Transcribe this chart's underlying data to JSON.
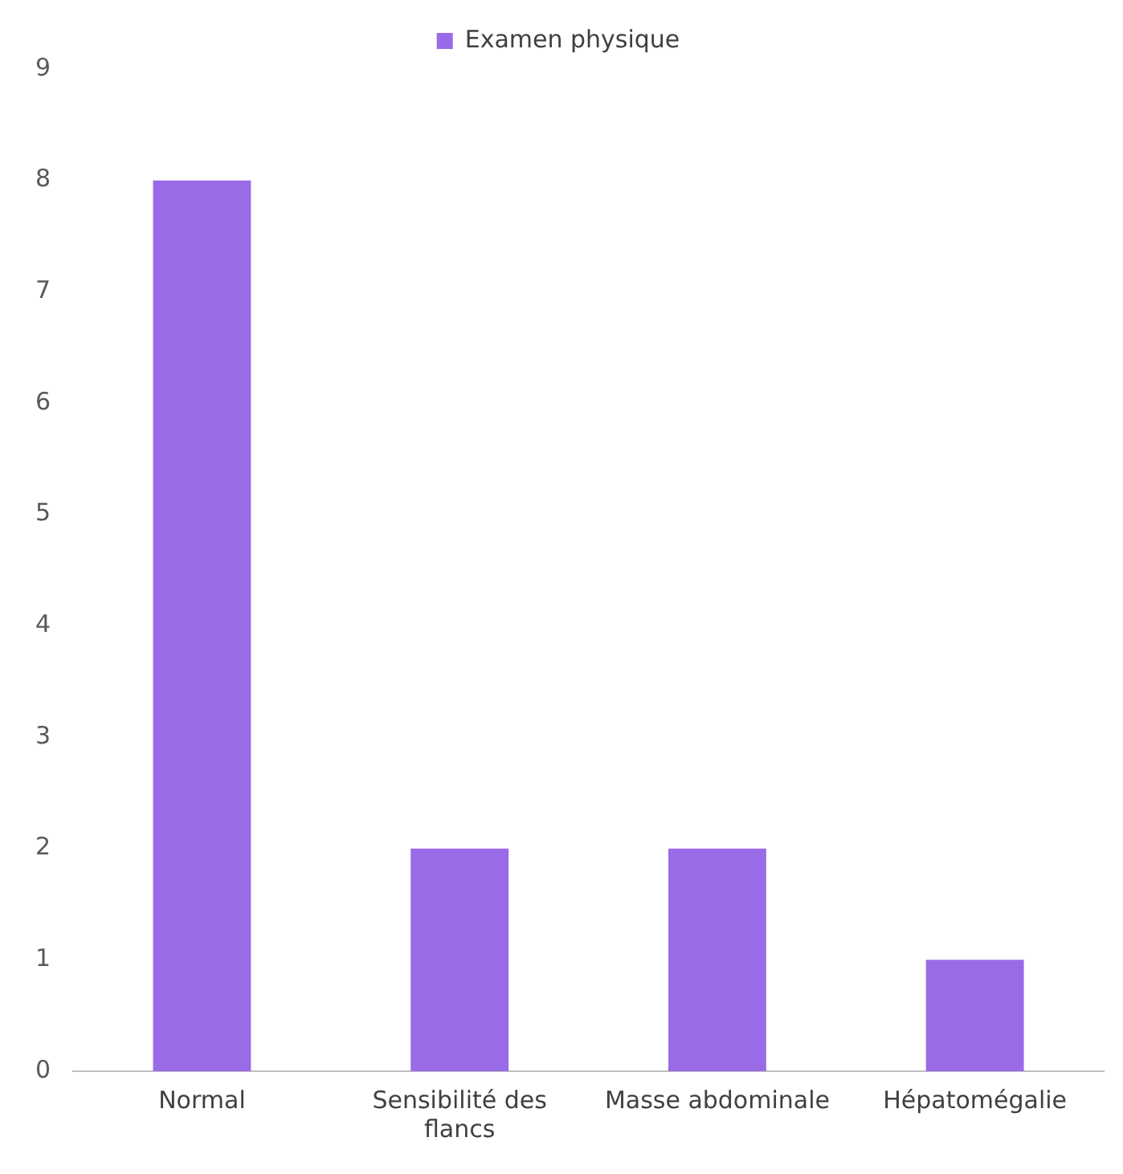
{
  "chart_data": {
    "type": "bar",
    "categories": [
      "Normal",
      "Sensibilité des flancs",
      "Masse abdominale",
      "Hépatomégalie"
    ],
    "series": [
      {
        "name": "Examen physique",
        "color": "#9a6be6",
        "values": [
          8,
          2,
          2,
          1
        ]
      }
    ],
    "ylim": [
      0,
      9
    ],
    "yticks": [
      0,
      1,
      2,
      3,
      4,
      5,
      6,
      7,
      8,
      9
    ],
    "grid": false,
    "legend": "top"
  }
}
